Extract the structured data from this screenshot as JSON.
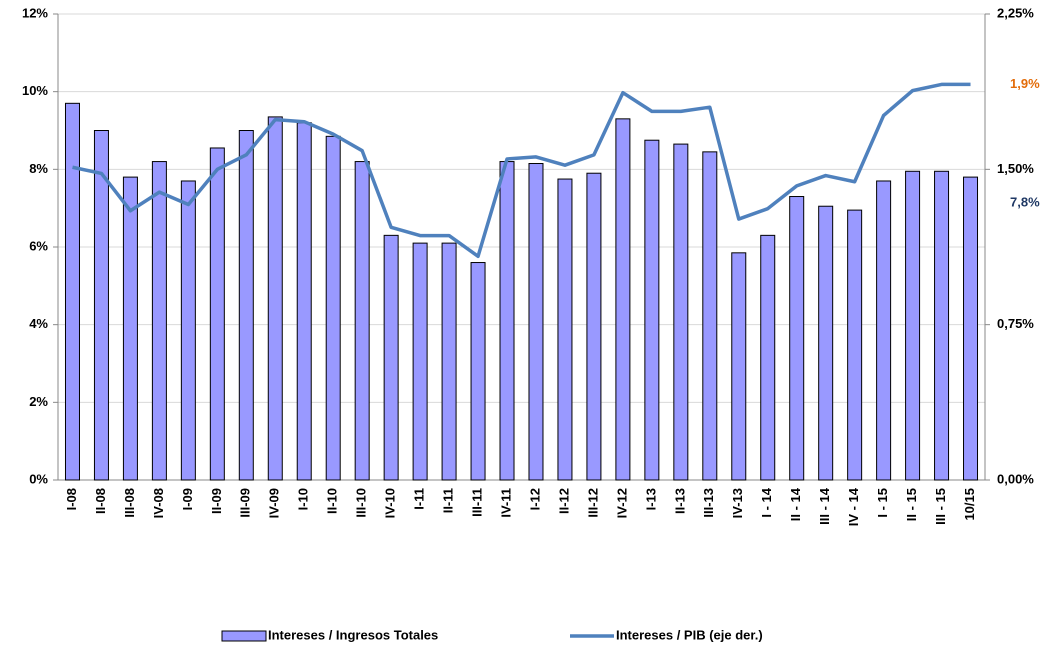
{
  "chart_data": {
    "type": "bar",
    "categories": [
      "I-08",
      "II-08",
      "III-08",
      "IV-08",
      "I-09",
      "II-09",
      "III-09",
      "IV-09",
      "I-10",
      "II-10",
      "III-10",
      "IV-10",
      "I-11",
      "II-11",
      "III-11",
      "IV-11",
      "I-12",
      "II-12",
      "III-12",
      "IV-12",
      "I-13",
      "II-13",
      "III-13",
      "IV-13",
      "I - 14",
      "II - 14",
      "III - 14",
      "IV - 14",
      "I - 15",
      "II - 15",
      "III - 15",
      "10/15"
    ],
    "series": [
      {
        "name": "Intereses / Ingresos Totales",
        "type": "bar",
        "color": "#9999ff",
        "values": [
          9.7,
          9.0,
          7.8,
          8.2,
          7.7,
          8.55,
          9.0,
          9.35,
          9.2,
          8.85,
          8.2,
          6.3,
          6.1,
          6.1,
          5.6,
          8.2,
          8.15,
          7.75,
          7.9,
          9.3,
          8.75,
          8.65,
          8.45,
          5.85,
          6.3,
          7.3,
          7.05,
          6.95,
          7.7,
          7.95,
          7.95,
          7.8
        ]
      },
      {
        "name": "Intereses / PIB (eje der.)",
        "type": "line",
        "axis": "y2",
        "color": "#4f81bd",
        "values": [
          1.51,
          1.48,
          1.3,
          1.39,
          1.33,
          1.5,
          1.57,
          1.74,
          1.73,
          1.67,
          1.59,
          1.22,
          1.18,
          1.18,
          1.08,
          1.55,
          1.56,
          1.52,
          1.57,
          1.87,
          1.78,
          1.78,
          1.8,
          1.26,
          1.31,
          1.42,
          1.47,
          1.44,
          1.76,
          1.88,
          1.91,
          1.91
        ]
      }
    ],
    "ylim": [
      0,
      12
    ],
    "yticks": [
      {
        "value": 0,
        "label": "0%"
      },
      {
        "value": 2,
        "label": "2%"
      },
      {
        "value": 4,
        "label": "4%"
      },
      {
        "value": 6,
        "label": "6%"
      },
      {
        "value": 8,
        "label": "8%"
      },
      {
        "value": 10,
        "label": "10%"
      },
      {
        "value": 12,
        "label": "12%"
      }
    ],
    "y2lim": [
      0,
      2.25
    ],
    "y2ticks": [
      {
        "value": 0,
        "label": "0,00%"
      },
      {
        "value": 0.75,
        "label": "0,75%"
      },
      {
        "value": 1.5,
        "label": "1,50%"
      },
      {
        "value": 2.25,
        "label": "2,25%"
      }
    ],
    "grid": true,
    "legend": "bottom",
    "annotations": [
      {
        "text": "1,9%",
        "color": "#e36c09"
      },
      {
        "text": "7,8%",
        "color": "#1f3864"
      }
    ]
  }
}
